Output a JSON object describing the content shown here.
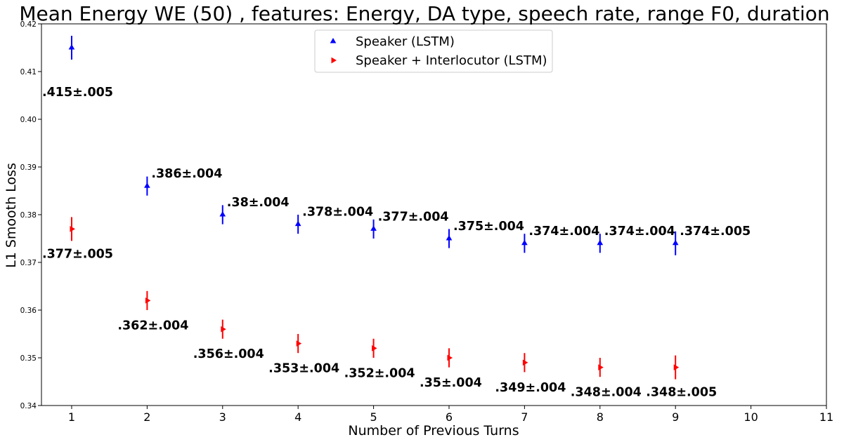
{
  "chart_data": {
    "type": "scatter",
    "title": "Mean Energy WE (50) , features: Energy, DA type, speech rate, range F0, duration",
    "xlabel": "Number of Previous Turns",
    "ylabel": "L1 Smooth Loss",
    "xlim": [
      0.6,
      11
    ],
    "ylim": [
      0.34,
      0.42
    ],
    "xticks": [
      1,
      2,
      3,
      4,
      5,
      6,
      7,
      8,
      9,
      10,
      11
    ],
    "yticks": [
      0.34,
      0.35,
      0.36,
      0.37,
      0.38,
      0.39,
      0.4,
      0.41,
      0.42
    ],
    "ytick_labels": [
      "0.34",
      "0.35",
      "0.36",
      "0.37",
      "0.38",
      "0.39",
      "0.40",
      "0.41",
      "0.42"
    ],
    "legend_position": "upper center",
    "grid": false,
    "series": [
      {
        "name": "Speaker (LSTM)",
        "color": "#0000ff",
        "marker": "triangle-up",
        "label_position": "above",
        "x": [
          1,
          2,
          3,
          4,
          5,
          6,
          7,
          8,
          9
        ],
        "y": [
          0.415,
          0.386,
          0.38,
          0.378,
          0.377,
          0.375,
          0.374,
          0.374,
          0.374
        ],
        "err": [
          0.0025,
          0.002,
          0.002,
          0.002,
          0.002,
          0.002,
          0.002,
          0.002,
          0.0025
        ],
        "labels": [
          ".415±.005",
          ".386±.004",
          ".38±.004",
          ".378±.004",
          ".377±.004",
          ".375±.004",
          ".374±.004",
          ".374±.004",
          ".374±.005"
        ]
      },
      {
        "name": "Speaker + Interlocutor (LSTM)",
        "color": "#ff0000",
        "marker": "triangle-right",
        "label_position": "below",
        "x": [
          1,
          2,
          3,
          4,
          5,
          6,
          7,
          8,
          9
        ],
        "y": [
          0.377,
          0.362,
          0.356,
          0.353,
          0.352,
          0.35,
          0.349,
          0.348,
          0.348
        ],
        "err": [
          0.0025,
          0.002,
          0.002,
          0.002,
          0.002,
          0.002,
          0.002,
          0.002,
          0.0025
        ],
        "labels": [
          ".377±.005",
          ".362±.004",
          ".356±.004",
          ".353±.004",
          ".352±.004",
          ".35±.004",
          ".349±.004",
          ".348±.004",
          ".348±.005"
        ]
      }
    ]
  }
}
